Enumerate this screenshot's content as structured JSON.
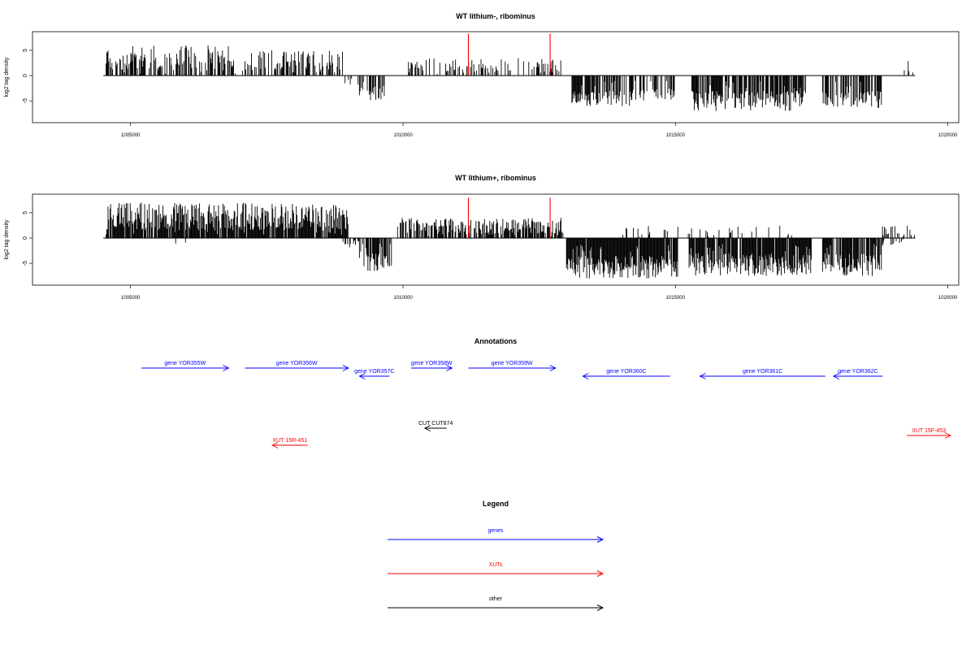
{
  "chart_data": [
    {
      "type": "bar",
      "title": "WT lithium-, ribominus",
      "ylabel": "log2 tag density",
      "xlabel": "",
      "xlim": [
        1003200,
        1020200
      ],
      "ylim": [
        -9,
        9
      ],
      "x_ticks": [
        1005000,
        1010000,
        1015000,
        1020000
      ],
      "x_tick_labels": [
        "1005000",
        "1010000",
        "1015000",
        "1020000"
      ],
      "y_ticks": [
        -5,
        0,
        5
      ],
      "y_tick_labels": [
        "-5",
        "0",
        "5"
      ],
      "baseline": {
        "from": 1004500,
        "to": 1019400,
        "y": 0
      },
      "highlight_lines": [
        {
          "x": 1011200,
          "y": 8.3,
          "color": "#ff0000"
        },
        {
          "x": 1012700,
          "y": 8.3,
          "color": "#ff0000"
        }
      ],
      "signal_segments": [
        {
          "from": 1004550,
          "to": 1006900,
          "sign": 1,
          "lo": 1.0,
          "hi": 6.0,
          "density": 0.6,
          "seed": 11
        },
        {
          "from": 1006900,
          "to": 1007100,
          "sign": 1,
          "lo": 0.3,
          "hi": 1.5,
          "density": 0.15,
          "seed": 12
        },
        {
          "from": 1007100,
          "to": 1008900,
          "sign": 1,
          "lo": 1.0,
          "hi": 5.0,
          "density": 0.55,
          "seed": 13
        },
        {
          "from": 1008900,
          "to": 1009200,
          "sign": -1,
          "lo": 0.3,
          "hi": 2.0,
          "density": 0.2,
          "seed": 14
        },
        {
          "from": 1009200,
          "to": 1009700,
          "sign": -1,
          "lo": 2.0,
          "hi": 5.0,
          "density": 0.5,
          "seed": 15
        },
        {
          "from": 1010100,
          "to": 1012900,
          "sign": 1,
          "lo": 0.5,
          "hi": 3.5,
          "density": 0.35,
          "seed": 16
        },
        {
          "from": 1013100,
          "to": 1014200,
          "sign": -1,
          "lo": 3.0,
          "hi": 6.0,
          "density": 0.7,
          "seed": 17
        },
        {
          "from": 1014200,
          "to": 1015000,
          "sign": -1,
          "lo": 2.5,
          "hi": 5.0,
          "density": 0.55,
          "seed": 18
        },
        {
          "from": 1015300,
          "to": 1017400,
          "sign": -1,
          "lo": 3.0,
          "hi": 7.0,
          "density": 0.75,
          "seed": 19
        },
        {
          "from": 1017700,
          "to": 1018800,
          "sign": -1,
          "lo": 3.0,
          "hi": 6.5,
          "density": 0.7,
          "seed": 20
        },
        {
          "from": 1019200,
          "to": 1019400,
          "sign": 1,
          "lo": 0.5,
          "hi": 3.5,
          "density": 0.3,
          "seed": 21
        }
      ]
    },
    {
      "type": "bar",
      "title": "WT lithium+, ribominus",
      "ylabel": "log2 tag density",
      "xlabel": "",
      "xlim": [
        1003200,
        1020200
      ],
      "ylim": [
        -9,
        9
      ],
      "x_ticks": [
        1005000,
        1010000,
        1015000,
        1020000
      ],
      "x_tick_labels": [
        "1005000",
        "1010000",
        "1015000",
        "1020000"
      ],
      "y_ticks": [
        -5,
        0,
        5
      ],
      "y_tick_labels": [
        "-5",
        "0",
        "5"
      ],
      "baseline": {
        "from": 1004500,
        "to": 1019400,
        "y": 0
      },
      "highlight_lines": [
        {
          "x": 1011200,
          "y": 8.0,
          "color": "#ff0000"
        },
        {
          "x": 1012700,
          "y": 8.0,
          "color": "#ff0000"
        }
      ],
      "signal_segments": [
        {
          "from": 1004550,
          "to": 1009000,
          "sign": 1,
          "lo": 1.5,
          "hi": 7.0,
          "density": 0.9,
          "seed": 31
        },
        {
          "from": 1005600,
          "to": 1006300,
          "sign": -1,
          "lo": 0.3,
          "hi": 1.5,
          "density": 0.1,
          "seed": 32
        },
        {
          "from": 1008900,
          "to": 1009200,
          "sign": -1,
          "lo": 0.3,
          "hi": 2.0,
          "density": 0.3,
          "seed": 33
        },
        {
          "from": 1009200,
          "to": 1009800,
          "sign": -1,
          "lo": 2.5,
          "hi": 6.5,
          "density": 0.7,
          "seed": 34
        },
        {
          "from": 1009900,
          "to": 1012950,
          "sign": 1,
          "lo": 0.8,
          "hi": 4.0,
          "density": 0.7,
          "seed": 35
        },
        {
          "from": 1013000,
          "to": 1015050,
          "sign": -1,
          "lo": 3.5,
          "hi": 8.0,
          "density": 0.95,
          "seed": 36
        },
        {
          "from": 1015250,
          "to": 1017500,
          "sign": -1,
          "lo": 3.0,
          "hi": 7.5,
          "density": 0.9,
          "seed": 37
        },
        {
          "from": 1014000,
          "to": 1017300,
          "sign": 1,
          "lo": 0.4,
          "hi": 2.5,
          "density": 0.15,
          "seed": 38
        },
        {
          "from": 1017700,
          "to": 1018800,
          "sign": -1,
          "lo": 3.0,
          "hi": 7.5,
          "density": 0.85,
          "seed": 39
        },
        {
          "from": 1018800,
          "to": 1019400,
          "sign": 1,
          "lo": 0.5,
          "hi": 2.5,
          "density": 0.35,
          "seed": 40
        },
        {
          "from": 1018800,
          "to": 1019200,
          "sign": -1,
          "lo": 0.3,
          "hi": 1.5,
          "density": 0.3,
          "seed": 41
        }
      ]
    }
  ],
  "annotations": {
    "title": "Annotations",
    "features": [
      {
        "label": "gene YOR355W",
        "start": 1005200,
        "end": 1006800,
        "dir": "right",
        "type": "gene",
        "row": 0
      },
      {
        "label": "gene YOR356W",
        "start": 1007100,
        "end": 1009000,
        "dir": "right",
        "type": "gene",
        "row": 0
      },
      {
        "label": "gene YOR357C",
        "start": 1009200,
        "end": 1009750,
        "dir": "left",
        "type": "gene",
        "row": 1
      },
      {
        "label": "gene YOR358W",
        "start": 1010150,
        "end": 1010900,
        "dir": "right",
        "type": "gene",
        "row": 0
      },
      {
        "label": "gene YOR359W",
        "start": 1011200,
        "end": 1012800,
        "dir": "right",
        "type": "gene",
        "row": 0
      },
      {
        "label": "gene YOR360C",
        "start": 1013300,
        "end": 1014900,
        "dir": "left",
        "type": "gene",
        "row": 1
      },
      {
        "label": "gene YOR361C",
        "start": 1015450,
        "end": 1017750,
        "dir": "left",
        "type": "gene",
        "row": 1
      },
      {
        "label": "gene YOR362C",
        "start": 1017900,
        "end": 1018800,
        "dir": "left",
        "type": "gene",
        "row": 1
      },
      {
        "label": "CUT CUT874",
        "start": 1010400,
        "end": 1010800,
        "dir": "left",
        "type": "other",
        "row": 2
      },
      {
        "label": "XUT 15R-451",
        "start": 1007600,
        "end": 1008250,
        "dir": "left",
        "type": "xut",
        "row": 3
      },
      {
        "label": "XUT 15F-453",
        "start": 1019250,
        "end": 1020200,
        "dir": "right",
        "type": "xut",
        "row": 4
      }
    ]
  },
  "legend": {
    "title": "Legend",
    "items": [
      {
        "label": "genes",
        "color": "#0000ff"
      },
      {
        "label": "XUTs",
        "color": "#ff0000"
      },
      {
        "label": "other",
        "color": "#000000"
      }
    ]
  },
  "colors": {
    "gene": "#0000ff",
    "xut": "#ff0000",
    "other": "#000000",
    "signal": "#000000",
    "highlight": "#ff0000"
  }
}
